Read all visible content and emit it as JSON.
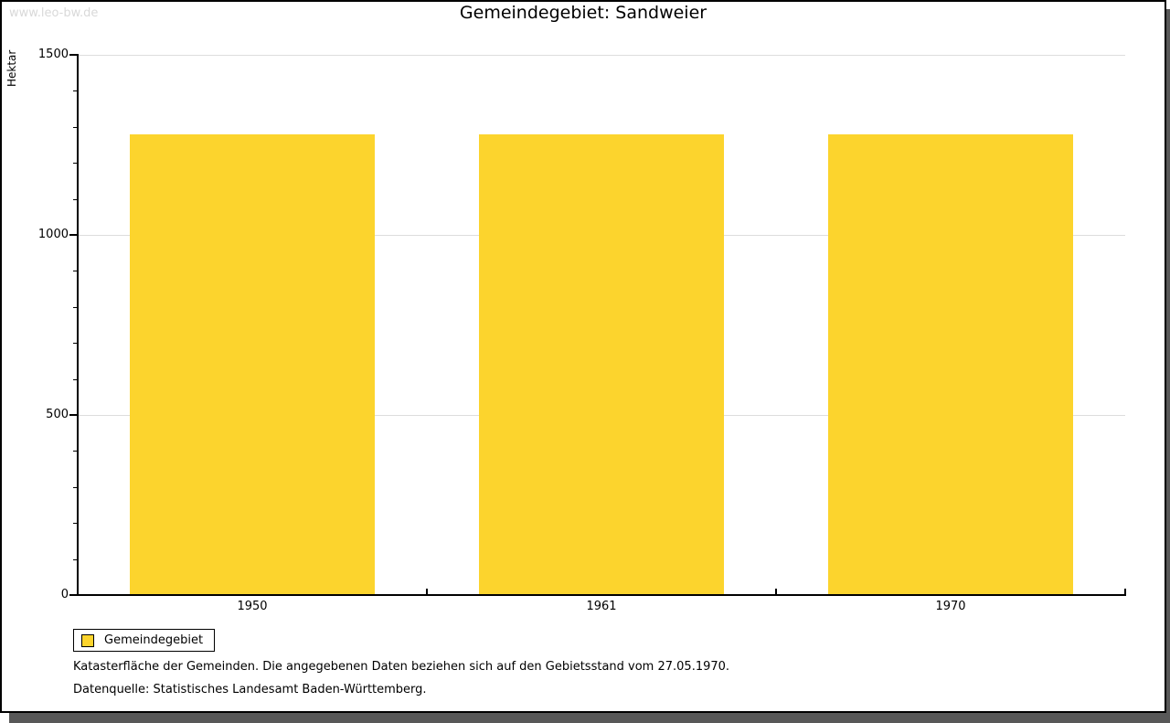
{
  "watermark": "www.leo-bw.de",
  "title": "Gemeindegebiet: Sandweier",
  "y_axis_label": "Hektar",
  "chart_data": {
    "type": "bar",
    "title": "Gemeindegebiet: Sandweier",
    "categories": [
      "1950",
      "1961",
      "1970"
    ],
    "series": [
      {
        "name": "Gemeindegebiet",
        "values": [
          1280,
          1280,
          1280
        ]
      }
    ],
    "xlabel": "",
    "ylabel": "Hektar",
    "ylim": [
      0,
      1500
    ],
    "yticks_major": [
      0,
      500,
      1000,
      1500
    ],
    "ytick_minor_step": 100,
    "grid": "horizontal lines at major y ticks",
    "legend_position": "below-left",
    "unit": "Hektar"
  },
  "legend": {
    "items": [
      {
        "label": "Gemeindegebiet",
        "color": "#fcd42d"
      }
    ]
  },
  "footnotes": [
    "Katasterfläche der Gemeinden. Die angegebenen Daten beziehen sich auf den Gebietsstand vom 27.05.1970.",
    "Datenquelle: Statistisches Landesamt Baden-Württemberg."
  ],
  "colors": {
    "bar": "#fcd42d",
    "grid": "#dddddd",
    "watermark": "#d9d9d9",
    "axis": "#000000",
    "shadow": "#585858"
  }
}
